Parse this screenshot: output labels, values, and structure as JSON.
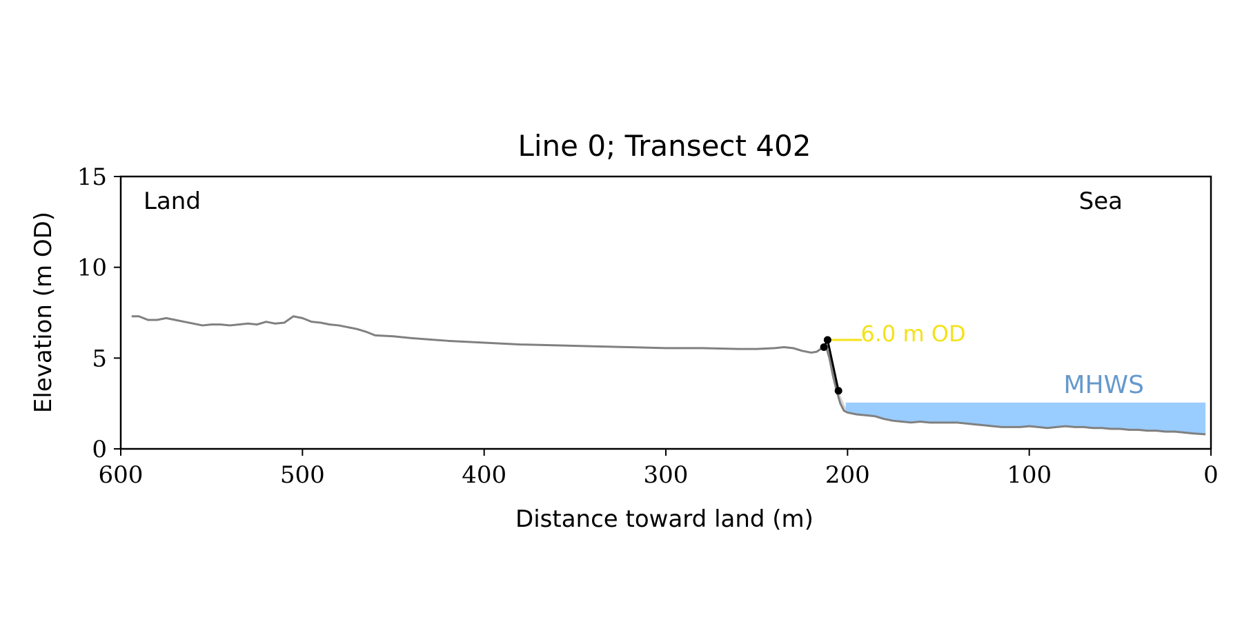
{
  "chart_data": {
    "type": "line",
    "title": "Line 0; Transect 402",
    "xlabel": "Distance toward land (m)",
    "ylabel": "Elevation (m OD)",
    "xlim": [
      600,
      0
    ],
    "ylim": [
      0,
      15
    ],
    "x_ticks": [
      600,
      500,
      400,
      300,
      200,
      100,
      0
    ],
    "y_ticks": [
      0,
      5,
      10,
      15
    ],
    "grid": false,
    "legend": "none",
    "corner_labels": {
      "left": "Land",
      "right": "Sea"
    },
    "profile": {
      "color": "#808080",
      "x": [
        594,
        590,
        585,
        580,
        575,
        570,
        565,
        560,
        555,
        550,
        545,
        540,
        535,
        530,
        525,
        520,
        515,
        510,
        505,
        500,
        495,
        490,
        485,
        480,
        475,
        470,
        465,
        460,
        450,
        440,
        420,
        400,
        380,
        360,
        340,
        320,
        300,
        280,
        260,
        250,
        240,
        235,
        230,
        225,
        220,
        217,
        214,
        212,
        210,
        208,
        206,
        204,
        202,
        200,
        195,
        190,
        185,
        180,
        175,
        170,
        165,
        160,
        155,
        150,
        145,
        140,
        135,
        130,
        125,
        120,
        115,
        110,
        105,
        100,
        95,
        90,
        85,
        80,
        75,
        70,
        65,
        60,
        55,
        50,
        45,
        40,
        35,
        30,
        25,
        20,
        15,
        10,
        3
      ],
      "y": [
        7.3,
        7.3,
        7.1,
        7.1,
        7.2,
        7.1,
        7.0,
        6.9,
        6.8,
        6.85,
        6.85,
        6.8,
        6.85,
        6.9,
        6.85,
        7.0,
        6.9,
        6.95,
        7.3,
        7.2,
        7.0,
        6.95,
        6.85,
        6.8,
        6.7,
        6.6,
        6.45,
        6.25,
        6.2,
        6.1,
        5.95,
        5.85,
        5.75,
        5.7,
        5.65,
        5.6,
        5.55,
        5.55,
        5.5,
        5.5,
        5.55,
        5.6,
        5.55,
        5.4,
        5.3,
        5.35,
        5.55,
        5.7,
        5.0,
        4.0,
        3.2,
        2.5,
        2.1,
        2.0,
        1.9,
        1.85,
        1.8,
        1.65,
        1.55,
        1.5,
        1.45,
        1.5,
        1.45,
        1.45,
        1.45,
        1.45,
        1.4,
        1.35,
        1.3,
        1.25,
        1.2,
        1.2,
        1.2,
        1.25,
        1.2,
        1.15,
        1.2,
        1.25,
        1.2,
        1.2,
        1.15,
        1.15,
        1.1,
        1.1,
        1.05,
        1.05,
        1.0,
        1.0,
        0.95,
        0.95,
        0.9,
        0.85,
        0.8
      ]
    },
    "fill_under_cliff": {
      "color": "#c8c8c8",
      "x": [
        214,
        212,
        210,
        208,
        206,
        204,
        202,
        200
      ],
      "y_top": [
        5.55,
        5.7,
        5.0,
        4.0,
        3.2,
        2.5,
        2.1,
        2.0
      ]
    },
    "cliff_line": {
      "color": "#000000",
      "points": [
        {
          "x": 213,
          "y": 5.6
        },
        {
          "x": 211,
          "y": 6.0
        },
        {
          "x": 205,
          "y": 3.2
        }
      ]
    },
    "annotation": {
      "text": "6.0 m OD",
      "color": "#f5e118",
      "y": 6.0,
      "x_start": 211,
      "x_end": 192
    },
    "mhws": {
      "label": "MHWS",
      "label_color": "#6699cc",
      "fill_color": "#99ccff",
      "level": 2.55,
      "x_start": 201,
      "x_end": 3
    }
  }
}
